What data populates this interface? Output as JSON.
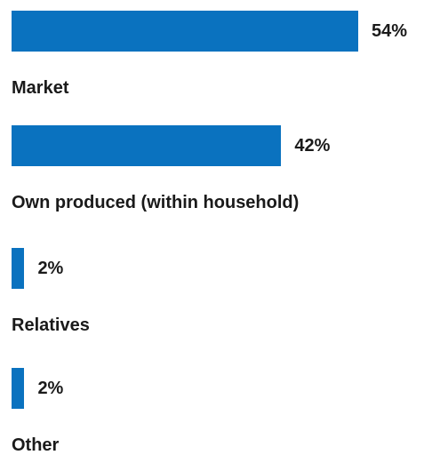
{
  "chart_data": {
    "type": "bar",
    "orientation": "horizontal",
    "categories": [
      "Market",
      "Own produced (within household)",
      "Relatives",
      "Other"
    ],
    "values": [
      54,
      42,
      2,
      2
    ],
    "value_labels": [
      "54%",
      "42%",
      "2%",
      "2%"
    ],
    "unit": "%",
    "xlim": [
      0,
      54
    ],
    "grid": false,
    "legend": "none",
    "colors": {
      "bar": "#0a72bf",
      "text": "#1a1a1a"
    }
  }
}
